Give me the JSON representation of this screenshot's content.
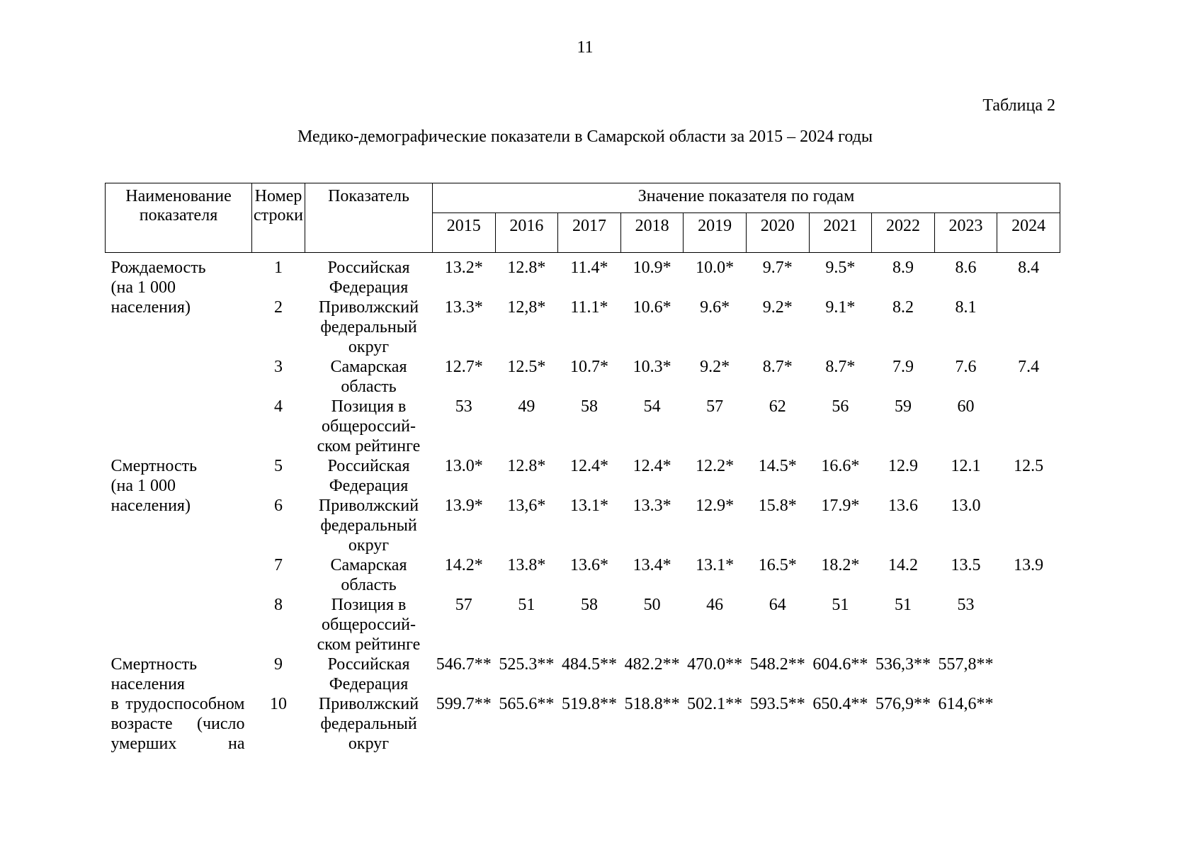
{
  "page": {
    "number": "11",
    "table_caption": "Таблица 2",
    "title": "Медико-демографические показатели в Самарской области за 2015 – 2024 годы"
  },
  "table": {
    "headers": {
      "col1_lines": [
        "Наименование",
        "показателя"
      ],
      "col2_lines": [
        "Номер",
        "строки"
      ],
      "col3": "Показатель",
      "years_title": "Значение показателя по годам",
      "years": [
        "2015",
        "2016",
        "2017",
        "2018",
        "2019",
        "2020",
        "2021",
        "2022",
        "2023",
        "2024"
      ]
    },
    "groups": [
      {
        "label_lines": [
          "Рождаемость",
          "(на 1 000",
          "населения)"
        ],
        "justify": false,
        "rows": [
          {
            "num": "1",
            "indicator_lines": [
              "Российская",
              "Федерация"
            ],
            "values": [
              "13.2*",
              "12.8*",
              "11.4*",
              "10.9*",
              "10.0*",
              "9.7*",
              "9.5*",
              "8.9",
              "8.6",
              "8.4"
            ]
          },
          {
            "num": "2",
            "indicator_lines": [
              "Приволжский",
              "федеральный",
              "округ"
            ],
            "values": [
              "13.3*",
              "12,8*",
              "11.1*",
              "10.6*",
              "9.6*",
              "9.2*",
              "9.1*",
              "8.2",
              "8.1",
              ""
            ]
          },
          {
            "num": "3",
            "indicator_lines": [
              "Самарская",
              "область"
            ],
            "values": [
              "12.7*",
              "12.5*",
              "10.7*",
              "10.3*",
              "9.2*",
              "8.7*",
              "8.7*",
              "7.9",
              "7.6",
              "7.4"
            ]
          },
          {
            "num": "4",
            "indicator_lines": [
              "Позиция в",
              "общероссий-",
              "ском рейтинге"
            ],
            "values": [
              "53",
              "49",
              "58",
              "54",
              "57",
              "62",
              "56",
              "59",
              "60",
              ""
            ]
          }
        ]
      },
      {
        "label_lines": [
          "Смертность",
          "(на 1 000",
          "населения)"
        ],
        "justify": false,
        "rows": [
          {
            "num": "5",
            "indicator_lines": [
              "Российская",
              "Федерация"
            ],
            "values": [
              "13.0*",
              "12.8*",
              "12.4*",
              "12.4*",
              "12.2*",
              "14.5*",
              "16.6*",
              "12.9",
              "12.1",
              "12.5"
            ]
          },
          {
            "num": "6",
            "indicator_lines": [
              "Приволжский",
              "федеральный",
              "округ"
            ],
            "values": [
              "13.9*",
              "13,6*",
              "13.1*",
              "13.3*",
              "12.9*",
              "15.8*",
              "17.9*",
              "13.6",
              "13.0",
              ""
            ]
          },
          {
            "num": "7",
            "indicator_lines": [
              "Самарская",
              "область"
            ],
            "values": [
              "14.2*",
              "13.8*",
              "13.6*",
              "13.4*",
              "13.1*",
              "16.5*",
              "18.2*",
              "14.2",
              "13.5",
              "13.9"
            ]
          },
          {
            "num": "8",
            "indicator_lines": [
              "Позиция в",
              "общероссий-",
              "ском рейтинге"
            ],
            "values": [
              "57",
              "51",
              "58",
              "50",
              "46",
              "64",
              "51",
              "51",
              "53",
              ""
            ]
          }
        ]
      },
      {
        "label_lines": [
          "Смертность",
          "населения",
          "в трудоспособном",
          "возрасте (число",
          "умерших на"
        ],
        "justify": true,
        "rows": [
          {
            "num": "9",
            "indicator_lines": [
              "Российская",
              "Федерация"
            ],
            "values": [
              "546.7**",
              "525.3**",
              "484.5**",
              "482.2**",
              "470.0**",
              "548.2**",
              "604.6**",
              "536,3**",
              "557,8**",
              ""
            ]
          },
          {
            "num": "10",
            "indicator_lines": [
              "Приволжский",
              "федеральный",
              "округ"
            ],
            "values": [
              "599.7**",
              "565.6**",
              "519.8**",
              "518.8**",
              "502.1**",
              "593.5**",
              "650.4**",
              "576,9**",
              "614,6**",
              ""
            ]
          }
        ]
      }
    ]
  }
}
